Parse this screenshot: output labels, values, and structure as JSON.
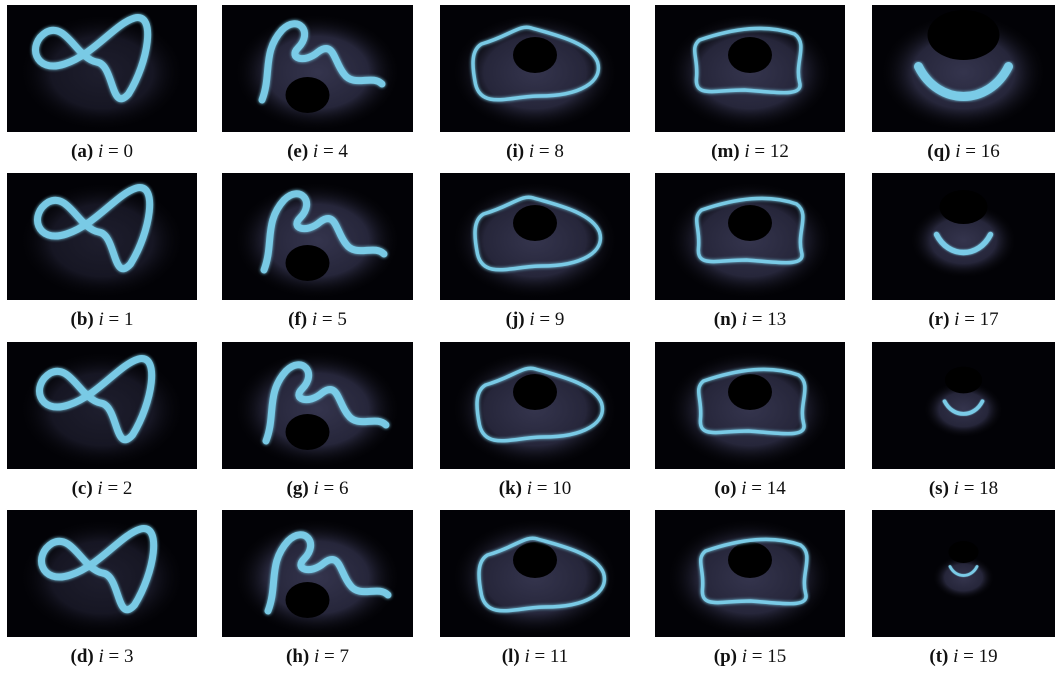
{
  "panels": [
    {
      "tag": "(a)",
      "var": "i",
      "rest": "= 0"
    },
    {
      "tag": "(b)",
      "var": "i",
      "rest": "= 1"
    },
    {
      "tag": "(c)",
      "var": "i",
      "rest": "= 2"
    },
    {
      "tag": "(d)",
      "var": "i",
      "rest": "= 3"
    },
    {
      "tag": "(e)",
      "var": "i",
      "rest": "= 4"
    },
    {
      "tag": "(f)",
      "var": "i",
      "rest": "= 5"
    },
    {
      "tag": "(g)",
      "var": "i",
      "rest": "= 6"
    },
    {
      "tag": "(h)",
      "var": "i",
      "rest": "= 7"
    },
    {
      "tag": "(i)",
      "var": "i",
      "rest": "= 8"
    },
    {
      "tag": "(j)",
      "var": "i",
      "rest": "= 9"
    },
    {
      "tag": "(k)",
      "var": "i",
      "rest": "= 10"
    },
    {
      "tag": "(l)",
      "var": "i",
      "rest": "= 11"
    },
    {
      "tag": "(m)",
      "var": "i",
      "rest": "= 12"
    },
    {
      "tag": "(n)",
      "var": "i",
      "rest": "= 13"
    },
    {
      "tag": "(o)",
      "var": "i",
      "rest": "= 14"
    },
    {
      "tag": "(p)",
      "var": "i",
      "rest": "= 15"
    },
    {
      "tag": "(q)",
      "var": "i",
      "rest": "= 16"
    },
    {
      "tag": "(r)",
      "var": "i",
      "rest": "= 17"
    },
    {
      "tag": "(s)",
      "var": "i",
      "rest": "= 18"
    },
    {
      "tag": "(t)",
      "var": "i",
      "rest": "= 19"
    }
  ]
}
